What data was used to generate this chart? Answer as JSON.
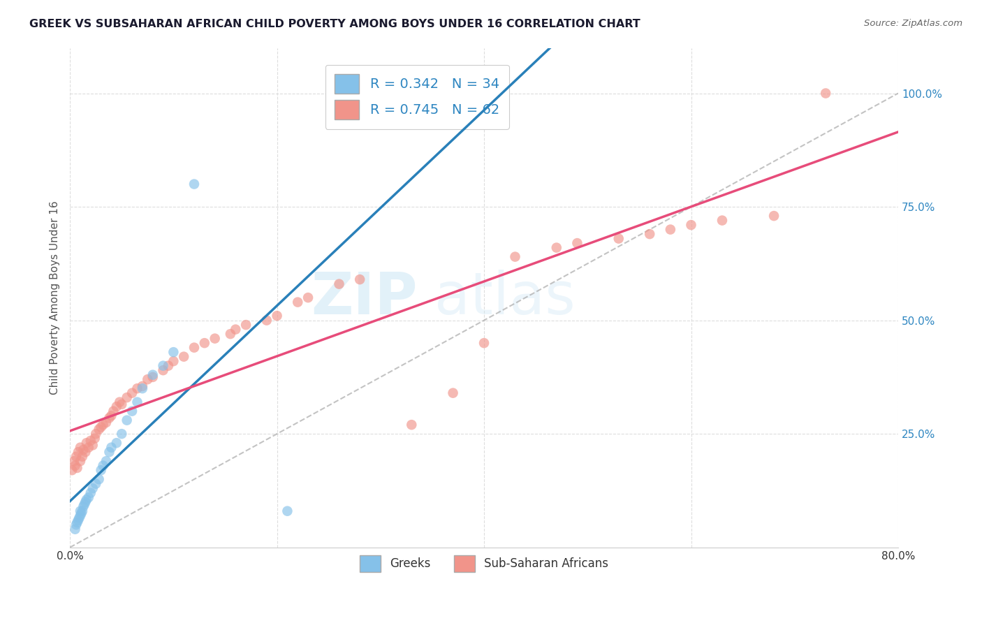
{
  "title": "GREEK VS SUBSAHARAN AFRICAN CHILD POVERTY AMONG BOYS UNDER 16 CORRELATION CHART",
  "source": "Source: ZipAtlas.com",
  "ylabel": "Child Poverty Among Boys Under 16",
  "watermark_line1": "ZIP",
  "watermark_line2": "atlas",
  "legend_label1": "Greeks",
  "legend_label2": "Sub-Saharan Africans",
  "r1": 0.342,
  "n1": 34,
  "r2": 0.745,
  "n2": 62,
  "blue_color": "#85c1e9",
  "pink_color": "#f1948a",
  "text_blue": "#2e86c1",
  "line_blue": "#2980b9",
  "line_pink": "#e74c7a",
  "blue_points_x": [
    0.005,
    0.006,
    0.007,
    0.008,
    0.009,
    0.01,
    0.01,
    0.011,
    0.012,
    0.013,
    0.014,
    0.015,
    0.016,
    0.018,
    0.02,
    0.022,
    0.025,
    0.028,
    0.03,
    0.032,
    0.035,
    0.038,
    0.04,
    0.045,
    0.05,
    0.055,
    0.06,
    0.065,
    0.07,
    0.08,
    0.09,
    0.1,
    0.12,
    0.21
  ],
  "blue_points_y": [
    0.04,
    0.05,
    0.055,
    0.06,
    0.065,
    0.07,
    0.08,
    0.075,
    0.08,
    0.09,
    0.095,
    0.1,
    0.105,
    0.11,
    0.12,
    0.13,
    0.14,
    0.15,
    0.17,
    0.18,
    0.19,
    0.21,
    0.22,
    0.23,
    0.25,
    0.28,
    0.3,
    0.32,
    0.35,
    0.38,
    0.4,
    0.43,
    0.8,
    0.08
  ],
  "pink_points_x": [
    0.002,
    0.004,
    0.005,
    0.006,
    0.007,
    0.008,
    0.01,
    0.01,
    0.012,
    0.013,
    0.015,
    0.016,
    0.018,
    0.02,
    0.022,
    0.024,
    0.025,
    0.028,
    0.03,
    0.032,
    0.035,
    0.038,
    0.04,
    0.042,
    0.045,
    0.048,
    0.05,
    0.055,
    0.06,
    0.065,
    0.07,
    0.075,
    0.08,
    0.09,
    0.095,
    0.1,
    0.11,
    0.12,
    0.13,
    0.14,
    0.155,
    0.16,
    0.17,
    0.19,
    0.2,
    0.22,
    0.23,
    0.26,
    0.28,
    0.33,
    0.37,
    0.4,
    0.43,
    0.47,
    0.49,
    0.53,
    0.56,
    0.58,
    0.6,
    0.63,
    0.68,
    0.73
  ],
  "pink_points_y": [
    0.17,
    0.19,
    0.18,
    0.2,
    0.175,
    0.21,
    0.19,
    0.22,
    0.2,
    0.215,
    0.21,
    0.23,
    0.22,
    0.235,
    0.225,
    0.24,
    0.25,
    0.26,
    0.265,
    0.27,
    0.275,
    0.285,
    0.29,
    0.3,
    0.31,
    0.32,
    0.315,
    0.33,
    0.34,
    0.35,
    0.355,
    0.37,
    0.375,
    0.39,
    0.4,
    0.41,
    0.42,
    0.44,
    0.45,
    0.46,
    0.47,
    0.48,
    0.49,
    0.5,
    0.51,
    0.54,
    0.55,
    0.58,
    0.59,
    0.27,
    0.34,
    0.45,
    0.64,
    0.66,
    0.67,
    0.68,
    0.69,
    0.7,
    0.71,
    0.72,
    0.73,
    1.0
  ],
  "xlim": [
    0.0,
    0.8
  ],
  "ylim": [
    0.0,
    1.1
  ],
  "grid_color": "#dddddd",
  "spine_color": "#cccccc"
}
